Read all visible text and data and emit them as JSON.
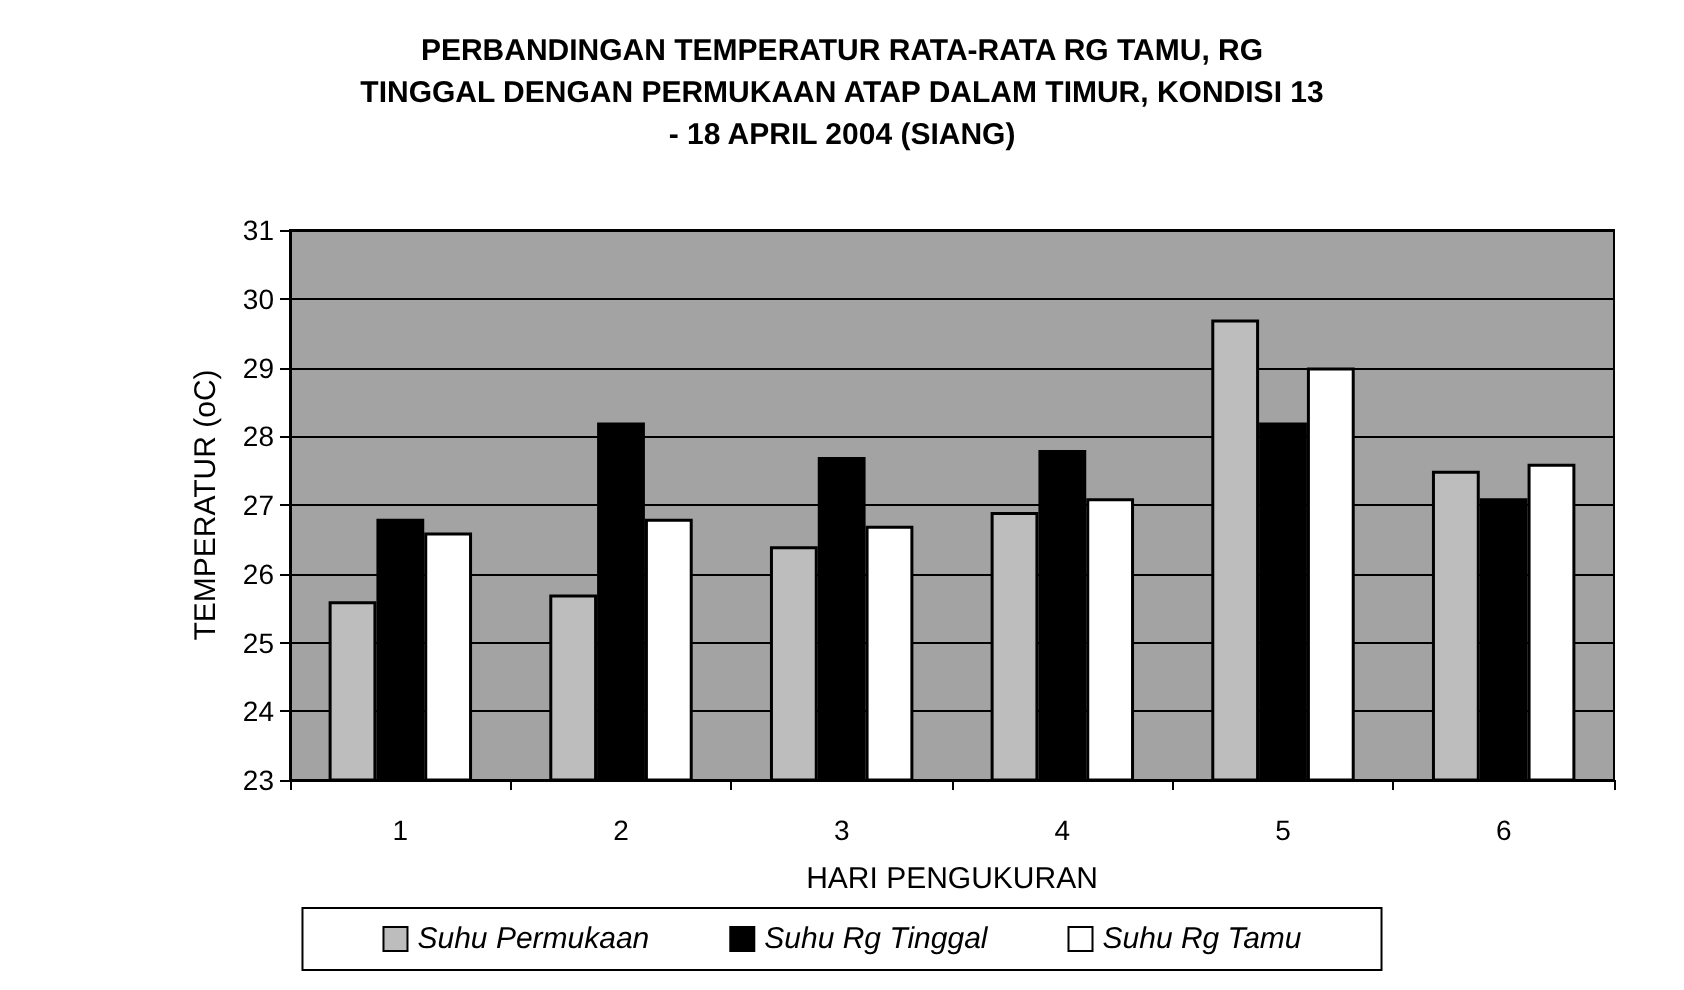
{
  "chart_data": {
    "type": "bar",
    "title": "PERBANDINGAN TEMPERATUR RATA-RATA RG TAMU, RG\nTINGGAL DENGAN PERMUKAAN ATAP DALAM TIMUR, KONDISI 13\n- 18 APRIL 2004 (SIANG)",
    "xlabel": "HARI PENGUKURAN",
    "ylabel": "TEMPERATUR (oC)",
    "categories": [
      "1",
      "2",
      "3",
      "4",
      "5",
      "6"
    ],
    "series": [
      {
        "name": "Suhu Permukaan",
        "color": "#bdbdbd",
        "values": [
          25.6,
          25.7,
          26.4,
          26.9,
          29.7,
          27.5
        ]
      },
      {
        "name": "Suhu Rg Tinggal",
        "color": "#000000",
        "values": [
          26.8,
          28.2,
          27.7,
          27.8,
          28.2,
          27.1
        ]
      },
      {
        "name": "Suhu Rg Tamu",
        "color": "#ffffff",
        "values": [
          26.6,
          26.8,
          26.7,
          27.1,
          29.0,
          27.6
        ]
      }
    ],
    "ylim": [
      23,
      31
    ],
    "yticks": [
      23,
      24,
      25,
      26,
      27,
      28,
      29,
      30,
      31
    ],
    "grid": "y",
    "legend": "bottom"
  }
}
